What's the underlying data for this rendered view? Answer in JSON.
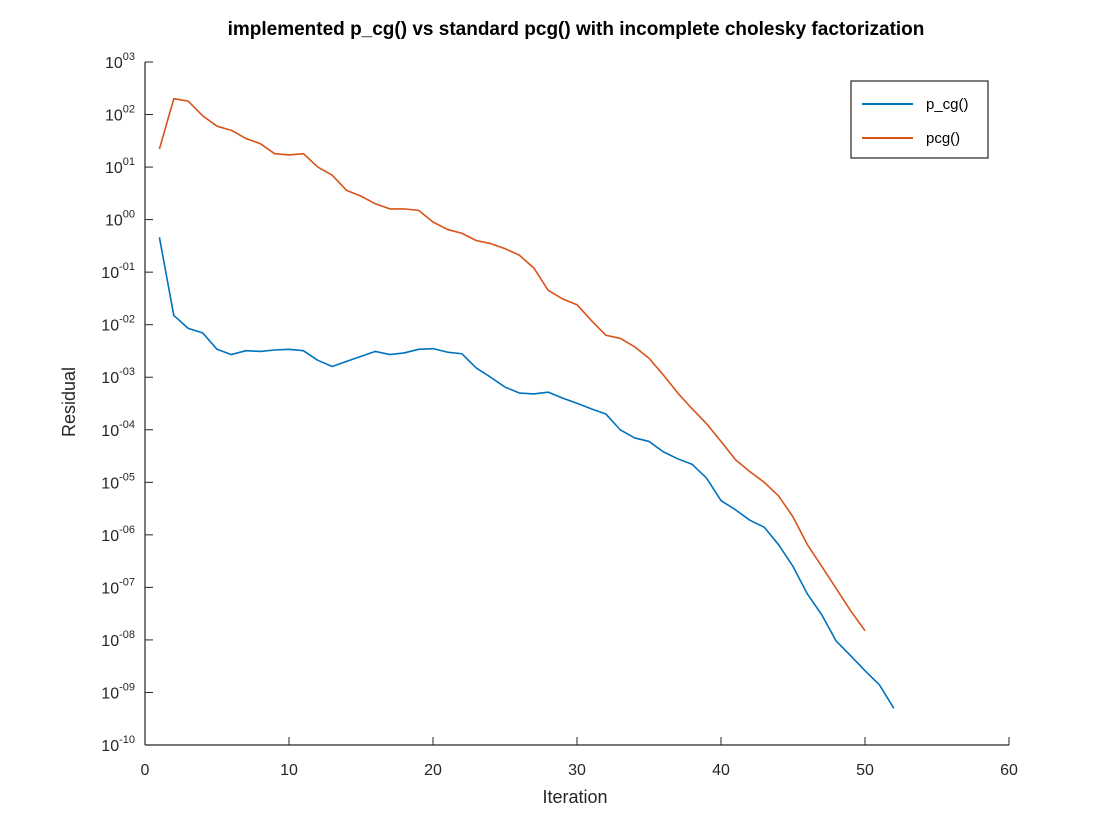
{
  "chart_data": {
    "type": "line",
    "title": "implemented p_cg() vs standard pcg() with incomplete cholesky factorization",
    "xlabel": "Iteration",
    "ylabel": "Residual",
    "xlim": [
      0,
      60
    ],
    "ylim": [
      1e-10,
      1000.0
    ],
    "yscale": "log",
    "xticks": [
      0,
      10,
      20,
      30,
      40,
      50,
      60
    ],
    "yticks": [
      {
        "base": "10",
        "exp": "-10",
        "value": 1e-10
      },
      {
        "base": "10",
        "exp": "-09",
        "value": 1e-09
      },
      {
        "base": "10",
        "exp": "-08",
        "value": 1e-08
      },
      {
        "base": "10",
        "exp": "-07",
        "value": 1e-07
      },
      {
        "base": "10",
        "exp": "-06",
        "value": 1e-06
      },
      {
        "base": "10",
        "exp": "-05",
        "value": 1e-05
      },
      {
        "base": "10",
        "exp": "-04",
        "value": 0.0001
      },
      {
        "base": "10",
        "exp": "-03",
        "value": 0.001
      },
      {
        "base": "10",
        "exp": "-02",
        "value": 0.01
      },
      {
        "base": "10",
        "exp": "-01",
        "value": 0.1
      },
      {
        "base": "10",
        "exp": "00",
        "value": 1
      },
      {
        "base": "10",
        "exp": "01",
        "value": 10
      },
      {
        "base": "10",
        "exp": "02",
        "value": 100
      },
      {
        "base": "10",
        "exp": "03",
        "value": 1000
      }
    ],
    "grid": false,
    "legend_position": "top-right",
    "series": [
      {
        "name": "p_cg()",
        "color": "#0072bd",
        "x": [
          1,
          2,
          3,
          4,
          5,
          6,
          7,
          8,
          9,
          10,
          11,
          12,
          13,
          14,
          15,
          16,
          17,
          18,
          19,
          20,
          21,
          22,
          23,
          24,
          25,
          26,
          27,
          28,
          29,
          30,
          31,
          32,
          33,
          34,
          35,
          36,
          37,
          38,
          39,
          40,
          41,
          42,
          43,
          44,
          45,
          46,
          47,
          48,
          49,
          50,
          51,
          52
        ],
        "y": [
          0.46,
          0.015,
          0.0085,
          0.007,
          0.0034,
          0.0027,
          0.0032,
          0.0031,
          0.0033,
          0.0034,
          0.0032,
          0.0021,
          0.0016,
          0.002,
          0.0025,
          0.0031,
          0.0027,
          0.0029,
          0.0034,
          0.0035,
          0.003,
          0.0028,
          0.0015,
          0.001,
          0.00065,
          0.0005,
          0.00048,
          0.00052,
          0.0004,
          0.00032,
          0.00025,
          0.0002,
          0.0001,
          7e-05,
          6e-05,
          3.8e-05,
          2.8e-05,
          2.2e-05,
          1.2e-05,
          4.5e-06,
          3e-06,
          1.9e-06,
          1.4e-06,
          6.5e-07,
          2.5e-07,
          7.5e-08,
          3e-08,
          9.5e-09,
          5e-09,
          2.6e-09,
          1.4e-09,
          5e-10
        ]
      },
      {
        "name": "pcg()",
        "color": "#d95319",
        "x": [
          1,
          2,
          3,
          4,
          5,
          6,
          7,
          8,
          9,
          10,
          11,
          12,
          13,
          14,
          15,
          16,
          17,
          18,
          19,
          20,
          21,
          22,
          23,
          24,
          25,
          26,
          27,
          28,
          29,
          30,
          31,
          32,
          33,
          34,
          35,
          36,
          37,
          38,
          39,
          40,
          41,
          42,
          43,
          44,
          45,
          46,
          47,
          48,
          49,
          50
        ],
        "y": [
          22,
          200,
          180,
          95,
          60,
          50,
          35,
          28,
          18,
          17,
          18,
          10,
          7,
          3.6,
          2.8,
          2.0,
          1.6,
          1.6,
          1.5,
          0.9,
          0.65,
          0.55,
          0.4,
          0.35,
          0.28,
          0.21,
          0.12,
          0.045,
          0.031,
          0.024,
          0.012,
          0.0063,
          0.0055,
          0.0038,
          0.0023,
          0.0011,
          0.0005,
          0.00025,
          0.00013,
          6e-05,
          2.7e-05,
          1.6e-05,
          1e-05,
          5.5e-06,
          2.2e-06,
          6.5e-07,
          2.5e-07,
          9.5e-08,
          3.6e-08,
          1.5e-08
        ]
      }
    ]
  }
}
